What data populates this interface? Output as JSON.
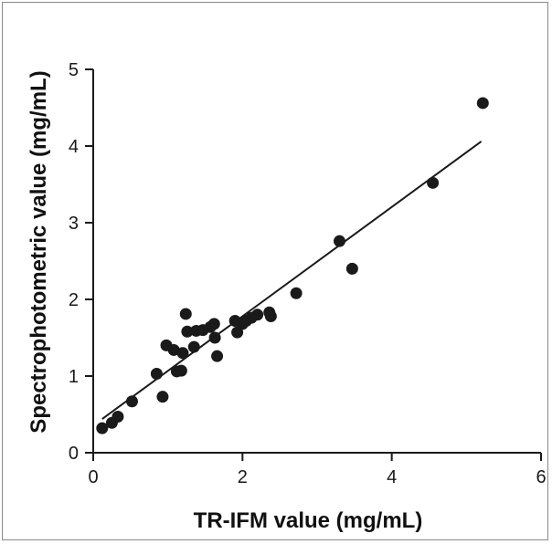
{
  "chart_data": {
    "type": "scatter",
    "title": "",
    "xlabel": "TR-IFM value (mg/mL)",
    "ylabel": "Spectrophotometric value (mg/mL)",
    "xlim": [
      0,
      6
    ],
    "ylim": [
      0,
      5
    ],
    "xticks": [
      0,
      2,
      4,
      6
    ],
    "yticks": [
      0,
      1,
      2,
      3,
      4,
      5
    ],
    "grid": false,
    "legend": "none",
    "point_color": "#1a1a1a",
    "points": [
      {
        "x": 0.12,
        "y": 0.32
      },
      {
        "x": 0.25,
        "y": 0.39
      },
      {
        "x": 0.33,
        "y": 0.47
      },
      {
        "x": 0.52,
        "y": 0.67
      },
      {
        "x": 0.85,
        "y": 1.03
      },
      {
        "x": 0.93,
        "y": 0.73
      },
      {
        "x": 0.98,
        "y": 1.4
      },
      {
        "x": 1.08,
        "y": 1.34
      },
      {
        "x": 1.12,
        "y": 1.06
      },
      {
        "x": 1.18,
        "y": 1.07
      },
      {
        "x": 1.2,
        "y": 1.3
      },
      {
        "x": 1.24,
        "y": 1.81
      },
      {
        "x": 1.26,
        "y": 1.58
      },
      {
        "x": 1.35,
        "y": 1.38
      },
      {
        "x": 1.38,
        "y": 1.59
      },
      {
        "x": 1.47,
        "y": 1.6
      },
      {
        "x": 1.57,
        "y": 1.64
      },
      {
        "x": 1.62,
        "y": 1.68
      },
      {
        "x": 1.63,
        "y": 1.5
      },
      {
        "x": 1.66,
        "y": 1.26
      },
      {
        "x": 1.9,
        "y": 1.72
      },
      {
        "x": 1.93,
        "y": 1.57
      },
      {
        "x": 2.0,
        "y": 1.68
      },
      {
        "x": 2.05,
        "y": 1.72
      },
      {
        "x": 2.12,
        "y": 1.76
      },
      {
        "x": 2.2,
        "y": 1.8
      },
      {
        "x": 2.36,
        "y": 1.83
      },
      {
        "x": 2.38,
        "y": 1.78
      },
      {
        "x": 2.72,
        "y": 2.08
      },
      {
        "x": 3.3,
        "y": 2.76
      },
      {
        "x": 3.47,
        "y": 2.4
      },
      {
        "x": 4.55,
        "y": 3.52
      },
      {
        "x": 5.22,
        "y": 4.56
      }
    ],
    "fit_line": {
      "x": [
        0.12,
        5.2
      ],
      "y": [
        0.44,
        4.06
      ]
    }
  }
}
